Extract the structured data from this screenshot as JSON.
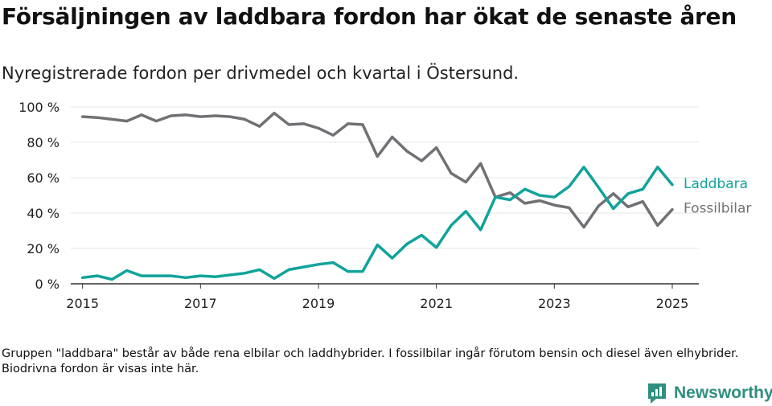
{
  "title": "Försäljningen av laddbara fordon har ökat de senaste åren",
  "subtitle": "Nyregistrerade fordon per drivmedel och kvartal i Östersund.",
  "footnote": "Gruppen \"laddbara\" består av både rena elbilar och laddhybrider. I fossilbilar ingår förutom bensin och diesel även elhybrider. Biodrivna fordon är visas inte här.",
  "brand": {
    "name": "Newsworthy",
    "color": "#2f8f7f"
  },
  "chart_data": {
    "type": "line",
    "title": "Försäljningen av laddbara fordon har ökat de senaste åren",
    "subtitle": "Nyregistrerade fordon per drivmedel och kvartal i Östersund.",
    "xlabel": "",
    "ylabel": "",
    "grid": true,
    "xlim": [
      2014.8,
      2025.45
    ],
    "ylim": [
      0,
      100
    ],
    "y_ticks": [
      0,
      20,
      40,
      60,
      80,
      100
    ],
    "y_tick_labels": [
      "0 %",
      "20 %",
      "40 %",
      "60 %",
      "80 %",
      "100 %"
    ],
    "x_ticks": [
      2015,
      2017,
      2019,
      2021,
      2023,
      2025
    ],
    "x_tick_labels": [
      "2015",
      "2017",
      "2019",
      "2021",
      "2023",
      "2025"
    ],
    "x": [
      2015.0,
      2015.25,
      2015.5,
      2015.75,
      2016.0,
      2016.25,
      2016.5,
      2016.75,
      2017.0,
      2017.25,
      2017.5,
      2017.75,
      2018.0,
      2018.25,
      2018.5,
      2018.75,
      2019.0,
      2019.25,
      2019.5,
      2019.75,
      2020.0,
      2020.25,
      2020.5,
      2020.75,
      2021.0,
      2021.25,
      2021.5,
      2021.75,
      2022.0,
      2022.25,
      2022.5,
      2022.75,
      2023.0,
      2023.25,
      2023.5,
      2023.75,
      2024.0,
      2024.25,
      2024.5,
      2024.75,
      2025.0
    ],
    "series": [
      {
        "name": "Fossilbilar",
        "color": "#727074",
        "values": [
          94.5,
          94,
          93,
          92,
          95.5,
          92,
          95,
          95.5,
          94.5,
          95,
          94.5,
          93,
          89,
          96.5,
          90,
          90.5,
          88,
          84,
          90.5,
          90,
          72,
          83,
          75,
          69.5,
          77,
          62.5,
          57.5,
          68,
          49,
          51.5,
          45.5,
          47,
          44.5,
          43,
          32,
          44,
          51,
          43.5,
          46.5,
          33,
          42
        ]
      },
      {
        "name": "Laddbara",
        "color": "#10a39b",
        "values": [
          3.5,
          4.5,
          2.5,
          7.5,
          4.5,
          4.5,
          4.5,
          3.5,
          4.5,
          4,
          5,
          6,
          8,
          3,
          8,
          9.5,
          11,
          12,
          7,
          7,
          22,
          14.5,
          22.5,
          27.5,
          20.5,
          33,
          41,
          30.5,
          49,
          47.5,
          53.5,
          50,
          49,
          55,
          66,
          54.5,
          42.5,
          51,
          53.5,
          66,
          56
        ]
      }
    ]
  }
}
